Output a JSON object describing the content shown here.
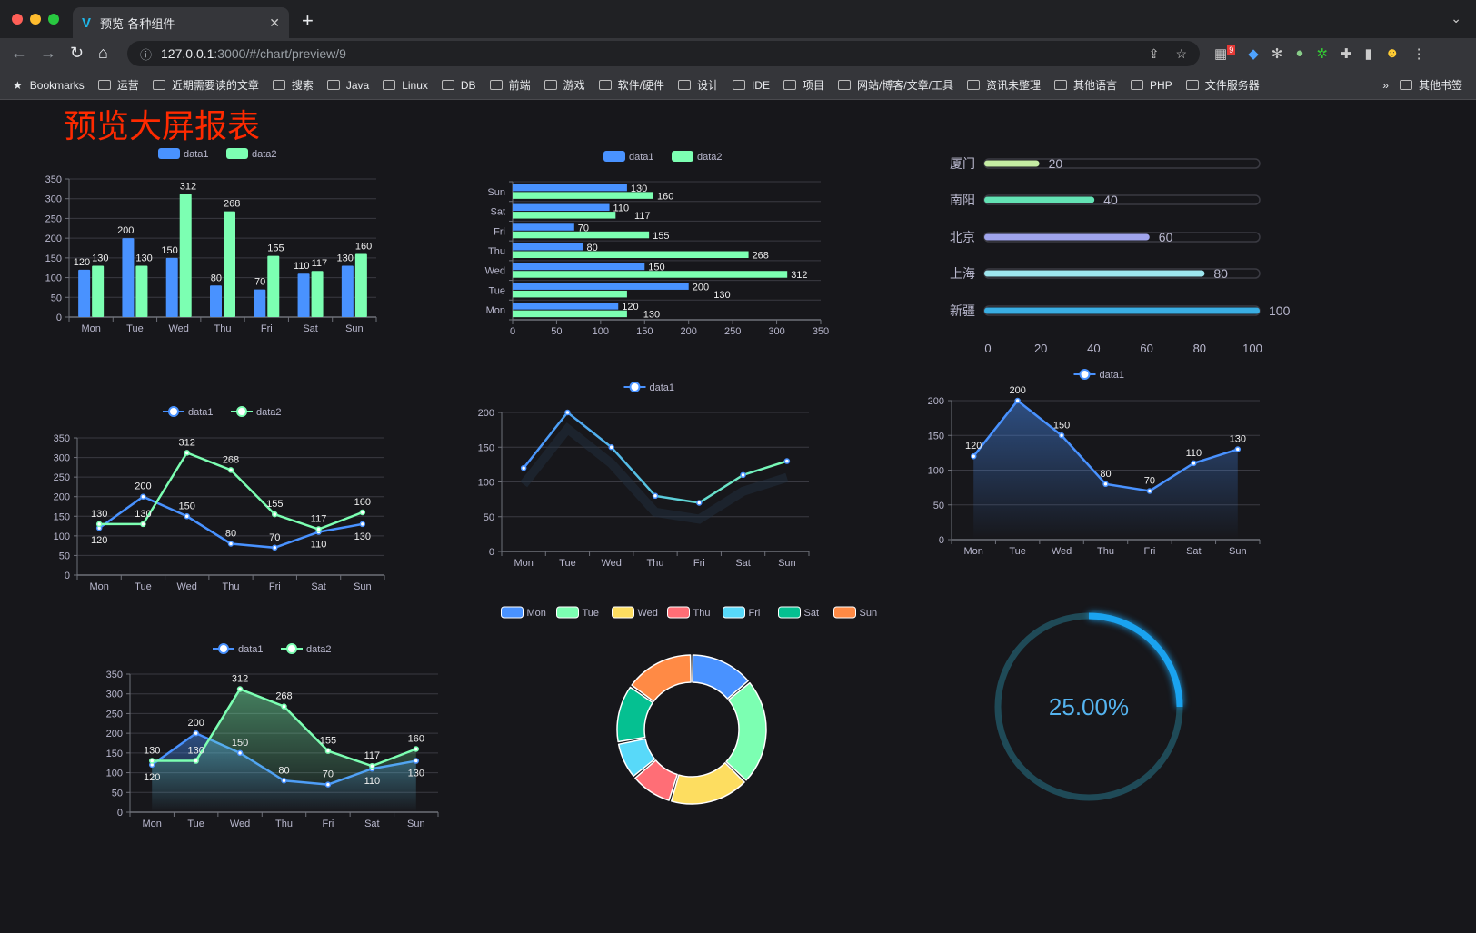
{
  "browser": {
    "tab_title": "预览-各种组件",
    "url_host": "127.0.0.1",
    "url_rest": ":3000/#/chart/preview/9",
    "extension_badge": "9",
    "bookmarks_label": "Bookmarks",
    "bookmarks": [
      "运营",
      "近期需要读的文章",
      "搜索",
      "Java",
      "Linux",
      "DB",
      "前端",
      "游戏",
      "软件/硬件",
      "设计",
      "IDE",
      "项目",
      "网站/博客/文章/工具",
      "资讯未整理",
      "其他语言",
      "PHP",
      "文件服务器"
    ],
    "more": "»",
    "other_bookmarks": "其他书签"
  },
  "page": {
    "title": "预览大屏报表",
    "title_color": "#ff2a00"
  },
  "colors": {
    "blue": "#4992ff",
    "green": "#7cffb2",
    "yellow": "#fddd60",
    "red": "#ff6e76",
    "cyan": "#58d9f9",
    "teal": "#05c091",
    "orange": "#ff8a45",
    "gauge": "#1aa3f0"
  },
  "chart_data": [
    {
      "type": "bar",
      "orientation": "vertical",
      "legend": [
        "data1",
        "data2"
      ],
      "categories": [
        "Mon",
        "Tue",
        "Wed",
        "Thu",
        "Fri",
        "Sat",
        "Sun"
      ],
      "series": [
        {
          "name": "data1",
          "values": [
            120,
            200,
            150,
            80,
            70,
            110,
            130
          ]
        },
        {
          "name": "data2",
          "values": [
            130,
            130,
            312,
            268,
            155,
            117,
            160
          ]
        }
      ],
      "yticks": [
        0,
        50,
        100,
        150,
        200,
        250,
        300,
        350
      ],
      "ylim": [
        0,
        350
      ],
      "grid": true,
      "data_labels": true,
      "legend_position": "top"
    },
    {
      "type": "bar",
      "orientation": "horizontal",
      "legend": [
        "data1",
        "data2"
      ],
      "categories": [
        "Mon",
        "Tue",
        "Wed",
        "Thu",
        "Fri",
        "Sat",
        "Sun"
      ],
      "series": [
        {
          "name": "data1",
          "values": [
            120,
            200,
            150,
            80,
            70,
            110,
            130
          ]
        },
        {
          "name": "data2",
          "values": [
            130,
            130,
            312,
            268,
            155,
            117,
            160
          ]
        }
      ],
      "xticks": [
        0,
        50,
        100,
        150,
        200,
        250,
        300,
        350
      ],
      "xlim": [
        0,
        350
      ],
      "grid": true,
      "data_labels": true,
      "legend_position": "top"
    },
    {
      "type": "bar",
      "orientation": "progress",
      "categories": [
        "厦门",
        "南阳",
        "北京",
        "上海",
        "新疆"
      ],
      "values": [
        20,
        40,
        60,
        80,
        100
      ],
      "colors": [
        "#c5eca3",
        "#63e2b4",
        "#a0a4ec",
        "#9ee6ee",
        "#3aaee3"
      ],
      "xticks": [
        0,
        20,
        40,
        60,
        80,
        100
      ],
      "xlim": [
        0,
        100
      ]
    },
    {
      "type": "line",
      "legend": [
        "data1",
        "data2"
      ],
      "categories": [
        "Mon",
        "Tue",
        "Wed",
        "Thu",
        "Fri",
        "Sat",
        "Sun"
      ],
      "series": [
        {
          "name": "data1",
          "values": [
            120,
            200,
            150,
            80,
            70,
            110,
            130
          ]
        },
        {
          "name": "data2",
          "values": [
            130,
            130,
            312,
            268,
            155,
            117,
            160
          ]
        }
      ],
      "yticks": [
        0,
        50,
        100,
        150,
        200,
        250,
        300,
        350
      ],
      "ylim": [
        0,
        350
      ],
      "area": false,
      "data_labels": true,
      "legend_position": "top"
    },
    {
      "type": "line",
      "legend": [
        "data1"
      ],
      "categories": [
        "Mon",
        "Tue",
        "Wed",
        "Thu",
        "Fri",
        "Sat",
        "Sun"
      ],
      "series": [
        {
          "name": "data1",
          "values": [
            120,
            200,
            150,
            80,
            70,
            110,
            130
          ]
        }
      ],
      "yticks": [
        0,
        50,
        100,
        150,
        200
      ],
      "ylim": [
        0,
        200
      ],
      "area": false,
      "gradient_line": true,
      "data_labels": false,
      "legend_position": "top"
    },
    {
      "type": "area",
      "legend": [
        "data1"
      ],
      "categories": [
        "Mon",
        "Tue",
        "Wed",
        "Thu",
        "Fri",
        "Sat",
        "Sun"
      ],
      "series": [
        {
          "name": "data1",
          "values": [
            120,
            200,
            150,
            80,
            70,
            110,
            130
          ]
        }
      ],
      "yticks": [
        0,
        50,
        100,
        150,
        200
      ],
      "ylim": [
        0,
        200
      ],
      "area": true,
      "data_labels": true,
      "legend_position": "top"
    },
    {
      "type": "area",
      "legend": [
        "data1",
        "data2"
      ],
      "categories": [
        "Mon",
        "Tue",
        "Wed",
        "Thu",
        "Fri",
        "Sat",
        "Sun"
      ],
      "series": [
        {
          "name": "data1",
          "values": [
            120,
            200,
            150,
            80,
            70,
            110,
            130
          ]
        },
        {
          "name": "data2",
          "values": [
            130,
            130,
            312,
            268,
            155,
            117,
            160
          ]
        }
      ],
      "yticks": [
        0,
        50,
        100,
        150,
        200,
        250,
        300,
        350
      ],
      "ylim": [
        0,
        350
      ],
      "area": true,
      "data_labels": true,
      "legend_position": "top"
    },
    {
      "type": "pie",
      "donut": true,
      "legend": [
        "Mon",
        "Tue",
        "Wed",
        "Thu",
        "Fri",
        "Sat",
        "Sun"
      ],
      "values": [
        120,
        200,
        150,
        80,
        70,
        110,
        130
      ],
      "legend_position": "top"
    },
    {
      "type": "gauge",
      "value": 0.25,
      "label": "25.00%"
    }
  ]
}
